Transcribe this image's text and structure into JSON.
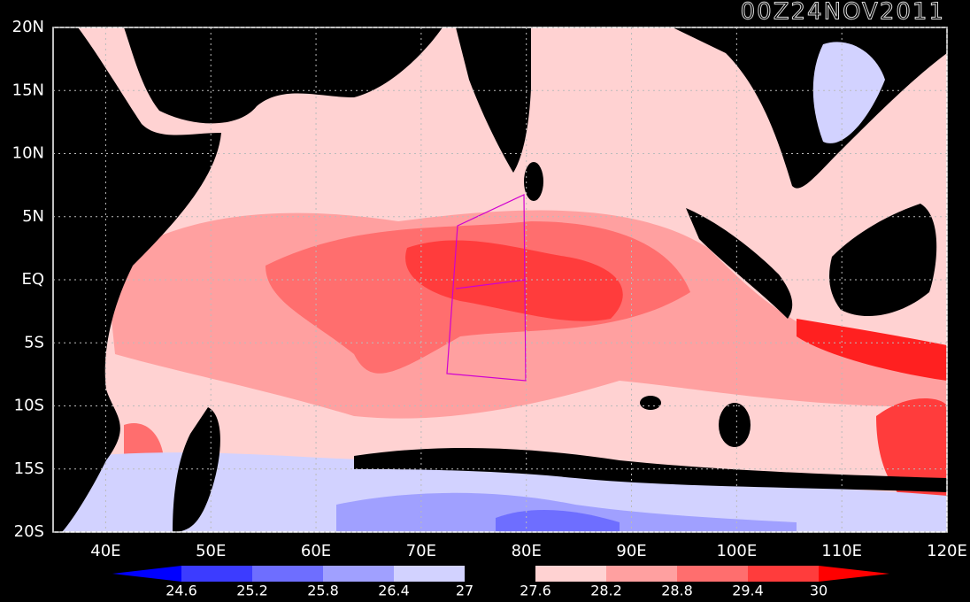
{
  "title": "00Z24NOV2011",
  "lonlim": [
    35,
    120
  ],
  "latlim": [
    -20,
    20
  ],
  "lon_ticks": [
    {
      "value": 40,
      "label": "40E"
    },
    {
      "value": 50,
      "label": "50E"
    },
    {
      "value": 60,
      "label": "60E"
    },
    {
      "value": 70,
      "label": "70E"
    },
    {
      "value": 80,
      "label": "80E"
    },
    {
      "value": 90,
      "label": "90E"
    },
    {
      "value": 100,
      "label": "100E"
    },
    {
      "value": 110,
      "label": "110E"
    },
    {
      "value": 120,
      "label": "120E"
    }
  ],
  "lat_ticks": [
    {
      "value": 20,
      "label": "20N"
    },
    {
      "value": 15,
      "label": "15N"
    },
    {
      "value": 10,
      "label": "10N"
    },
    {
      "value": 5,
      "label": "5N"
    },
    {
      "value": 0,
      "label": "EQ"
    },
    {
      "value": -5,
      "label": "5S"
    },
    {
      "value": -10,
      "label": "10S"
    },
    {
      "value": -15,
      "label": "15S"
    },
    {
      "value": -20,
      "label": "20S"
    }
  ],
  "grid": true,
  "colorbar": {
    "levels": [
      24.6,
      25.2,
      25.8,
      26.4,
      27,
      27.6,
      28.2,
      28.8,
      29.4,
      30
    ],
    "colors": [
      "#0000ff",
      "#3c3cff",
      "#6e6eff",
      "#a0a0ff",
      "#d2d2ff",
      "#000000",
      "#ffd2d2",
      "#ffa0a0",
      "#ff6e6e",
      "#ff3c3c",
      "#ff0000"
    ]
  }
}
